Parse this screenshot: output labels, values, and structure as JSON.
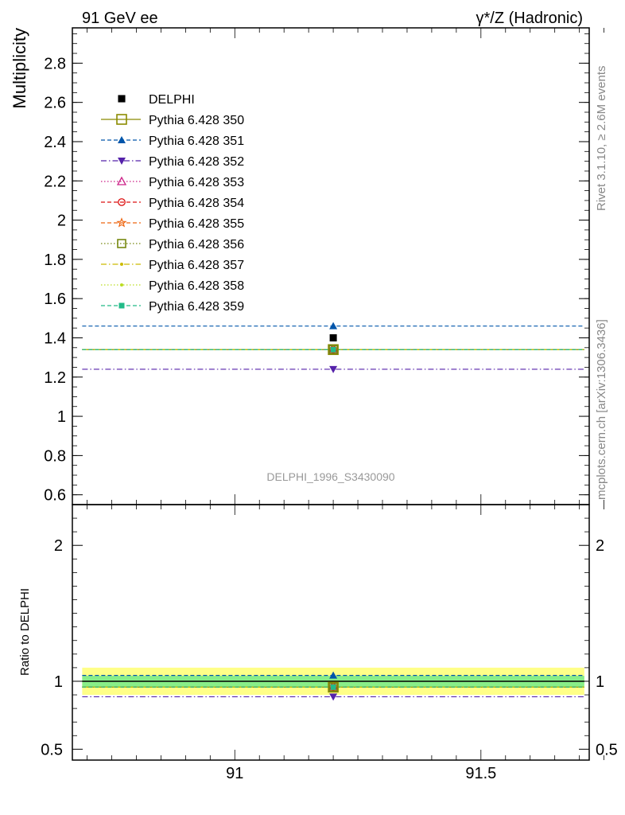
{
  "header": {
    "left": "91 GeV ee",
    "right": "γ*/Z (Hadronic)"
  },
  "side": {
    "rivet": "Rivet 3.1.10, ≥ 2.6M events",
    "mcplots": "mcplots.cern.ch [arXiv:1306.3436]"
  },
  "chart_data": [
    {
      "type": "scatter",
      "panel": "main",
      "ylabel": "Multiplicity",
      "watermark": "DELPHI_1996_S3430090",
      "xlim": [
        90.67,
        91.72
      ],
      "ylim": [
        0.55,
        2.98
      ],
      "x_point": 91.2,
      "x_range": [
        90.69,
        91.71
      ],
      "yticks": [
        0.6,
        0.8,
        1,
        1.2,
        1.4,
        1.6,
        1.8,
        2,
        2.2,
        2.4,
        2.6,
        2.8
      ],
      "ytick_labels": [
        "0.6",
        "0.8",
        "1",
        "1.2",
        "1.4",
        "1.6",
        "1.8",
        "2",
        "2.2",
        "2.4",
        "2.6",
        "2.8"
      ],
      "legend_position": "top-left",
      "data": {
        "name": "DELPHI",
        "y": 1.4,
        "color": "#000000"
      },
      "series": [
        {
          "name": "Pythia 6.428 350",
          "y": 1.34,
          "color": "#8b8b00",
          "dash": "solid",
          "marker": "open-square"
        },
        {
          "name": "Pythia 6.428 351",
          "y": 1.46,
          "color": "#0055aa",
          "dash": "dashed",
          "marker": "triangle-up"
        },
        {
          "name": "Pythia 6.428 352",
          "y": 1.24,
          "color": "#5522aa",
          "dash": "dashdot",
          "marker": "triangle-down"
        },
        {
          "name": "Pythia 6.428 353",
          "y": 1.34,
          "color": "#cc2288",
          "dash": "dotted",
          "marker": "open-triangle"
        },
        {
          "name": "Pythia 6.428 354",
          "y": 1.34,
          "color": "#dd1111",
          "dash": "dashed",
          "marker": "open-circle"
        },
        {
          "name": "Pythia 6.428 355",
          "y": 1.34,
          "color": "#ee6611",
          "dash": "dashed",
          "marker": "open-star"
        },
        {
          "name": "Pythia 6.428 356",
          "y": 1.34,
          "color": "#778811",
          "dash": "dotted",
          "marker": "open-square"
        },
        {
          "name": "Pythia 6.428 357",
          "y": 1.34,
          "color": "#ccbb00",
          "dash": "dashdot",
          "marker": "small-dot"
        },
        {
          "name": "Pythia 6.428 358",
          "y": 1.34,
          "color": "#bbdd22",
          "dash": "dotted",
          "marker": "small-dot"
        },
        {
          "name": "Pythia 6.428 359",
          "y": 1.34,
          "color": "#22bb88",
          "dash": "dashed",
          "marker": "filled-square"
        }
      ]
    },
    {
      "type": "scatter",
      "panel": "ratio",
      "ylabel": "Ratio to DELPHI",
      "xlim": [
        90.67,
        91.72
      ],
      "ylim": [
        0.42,
        2.3
      ],
      "xticks": [
        91,
        91.5
      ],
      "xtick_labels": [
        "91",
        "91.5"
      ],
      "yticks": [
        0.5,
        1,
        2
      ],
      "ytick_labels": [
        "0.5",
        "1",
        "2"
      ],
      "band_yellow": [
        0.9,
        1.1
      ],
      "band_green": [
        0.96,
        1.04
      ],
      "series_ratio": [
        0.957,
        1.043,
        0.886,
        0.957,
        0.957,
        0.957,
        0.957,
        0.957,
        0.957,
        0.957
      ]
    }
  ]
}
